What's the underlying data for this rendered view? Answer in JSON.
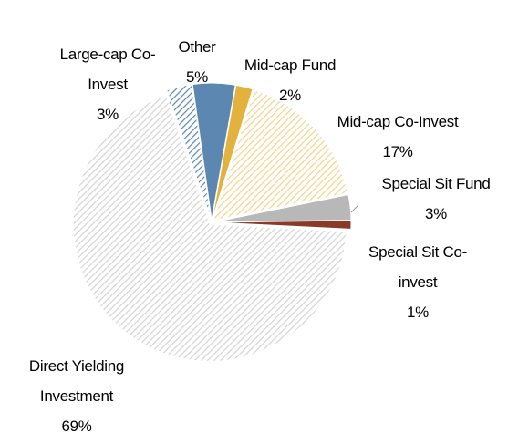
{
  "chart_data": {
    "type": "pie",
    "categories": [
      "Other",
      "Mid-cap Fund",
      "Mid-cap Co-Invest",
      "Special Sit Fund",
      "Special Sit Co-invest",
      "Direct Yielding Investment",
      "Large-cap Co-Invest"
    ],
    "values": [
      5,
      2,
      17,
      3,
      1,
      69,
      3
    ],
    "value_labels": [
      "5%",
      "2%",
      "17%",
      "3%",
      "1%",
      "69%",
      "3%"
    ],
    "colors": [
      "#5b87b0",
      "#e3b23c",
      "#f3d48a",
      "#b8b8b8",
      "#8b3a2a",
      "#d4d4d4",
      "#5b87b0"
    ],
    "hatched": [
      false,
      false,
      true,
      false,
      false,
      true,
      true
    ]
  }
}
